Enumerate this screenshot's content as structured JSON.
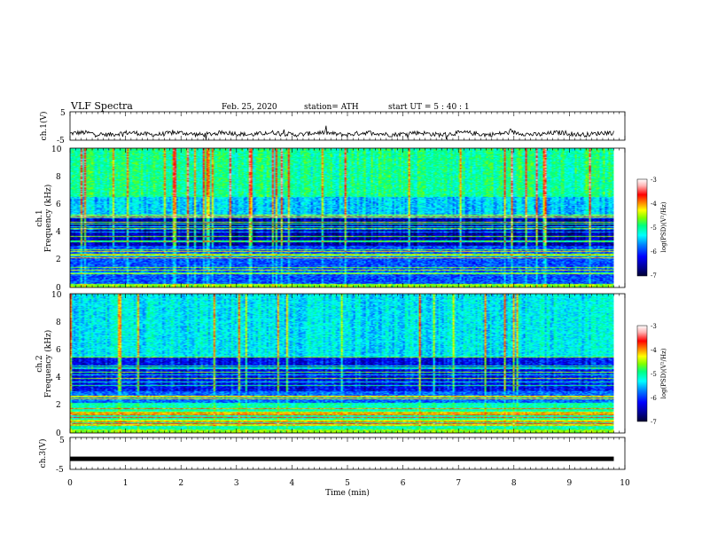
{
  "header": {
    "title": "VLF  Spectra",
    "date": "Feb. 25, 2020",
    "station": "station= ATH",
    "start_ut": "start  UT  =    5  : 40 : 1"
  },
  "chart_data": [
    {
      "type": "line",
      "panel": "ch1-waveform",
      "ylabel": "ch.1(V)",
      "ylim": [
        -5,
        5
      ],
      "yticks": [
        "5",
        "-5"
      ],
      "xlim": [
        0,
        10
      ],
      "duration_min": 9.8,
      "baseline_v": -2.7,
      "color": "#000000"
    },
    {
      "type": "heatmap",
      "panel": "ch1-spectrogram",
      "ylabel_line1": "ch.1",
      "ylabel_line2": "Frequency  (kHz)",
      "ylim": [
        0,
        10
      ],
      "yticks": [
        "0",
        "2",
        "4",
        "6",
        "8",
        "10"
      ],
      "xlim": [
        0,
        10
      ],
      "duration_min": 9.8,
      "colorbar": {
        "label": "log(PSD)(V²/Hz)",
        "range": [
          -7,
          -3
        ],
        "ticks": [
          "-3",
          "-4",
          "-5",
          "-6",
          "-7"
        ]
      }
    },
    {
      "type": "heatmap",
      "panel": "ch2-spectrogram",
      "ylabel_line1": "ch.2",
      "ylabel_line2": "Frequency  (kHz)",
      "ylim": [
        0,
        10
      ],
      "yticks": [
        "0",
        "2",
        "4",
        "6",
        "8",
        "10"
      ],
      "xlim": [
        0,
        10
      ],
      "duration_min": 9.8,
      "colorbar": {
        "label": "log(PSD)(V²/Hz)",
        "range": [
          -7,
          -3
        ],
        "ticks": [
          "-3",
          "-4",
          "-5",
          "-6",
          "-7"
        ]
      }
    },
    {
      "type": "line",
      "panel": "ch3-waveform",
      "ylabel": "ch.3(V)",
      "ylim": [
        -5,
        5
      ],
      "yticks": [
        "5",
        "-5"
      ],
      "xlim": [
        0,
        10
      ],
      "duration_min": 9.8,
      "constant_v": -1.7,
      "color": "#000000"
    }
  ],
  "xaxis": {
    "label": "Time  (min)",
    "ticks": [
      "0",
      "1",
      "2",
      "3",
      "4",
      "5",
      "6",
      "7",
      "8",
      "9",
      "10"
    ]
  },
  "colors": {
    "colormap": [
      "#000033",
      "#00008b",
      "#0000ff",
      "#0080ff",
      "#00ffff",
      "#00ff80",
      "#80ff00",
      "#ffff00",
      "#ff8000",
      "#ff0000",
      "#ffb0b0",
      "#ffffff"
    ]
  }
}
